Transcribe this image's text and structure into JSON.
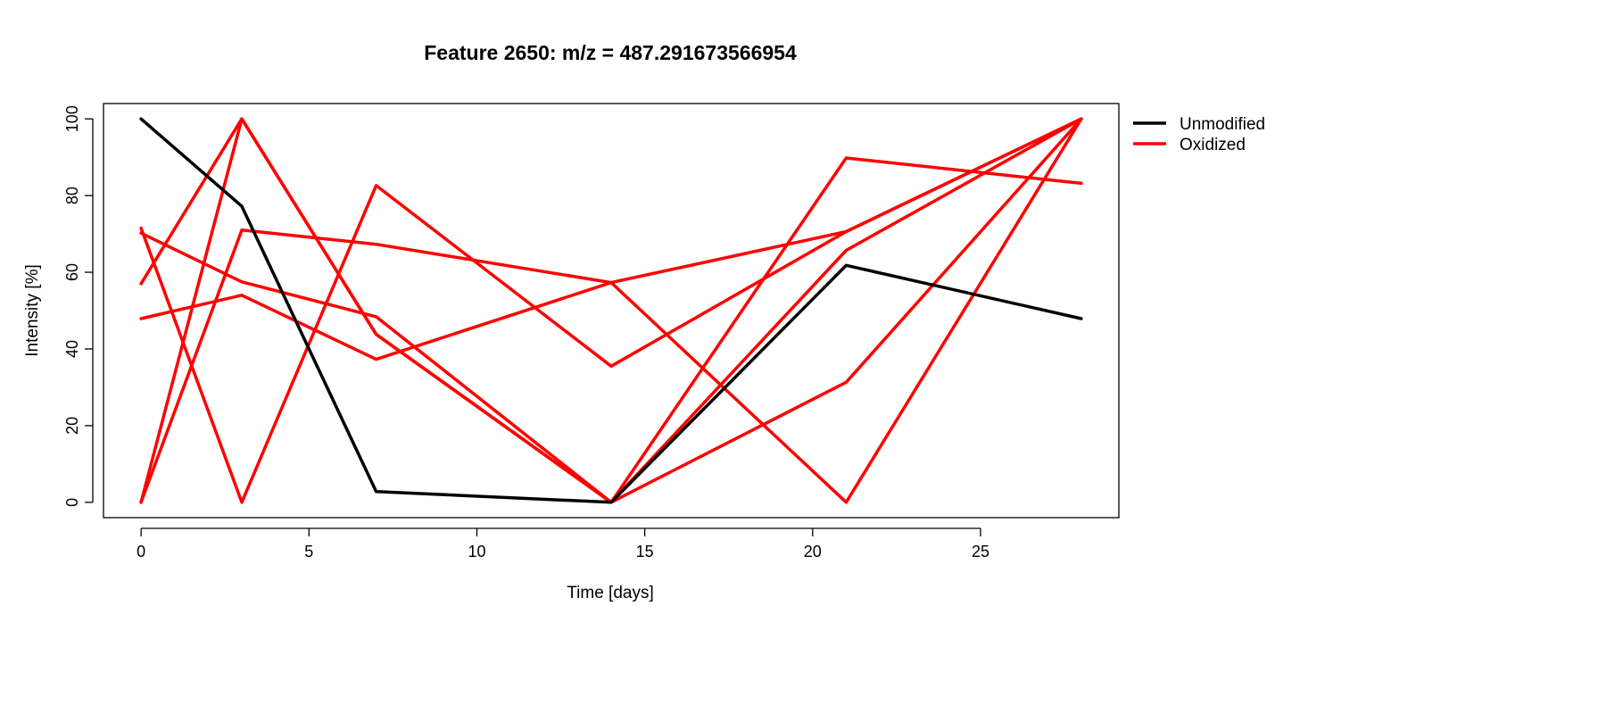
{
  "chart_data": {
    "type": "line",
    "title": "Feature 2650: m/z = 487.291673566954",
    "xlabel": "Time [days]",
    "ylabel": "Intensity [%]",
    "x": [
      0,
      3,
      7,
      14,
      21,
      28
    ],
    "xlim": [
      -1.12,
      29.12
    ],
    "ylim": [
      -4,
      104
    ],
    "xticks": [
      0,
      5,
      10,
      15,
      20,
      25
    ],
    "yticks": [
      0,
      20,
      40,
      60,
      80,
      100
    ],
    "grid": false,
    "legend_position": "top-right, outside plot",
    "legend": [
      {
        "label": "Unmodified",
        "color": "#000000"
      },
      {
        "label": "Oxidized",
        "color": "#ff0000"
      }
    ],
    "series": [
      {
        "group": "Unmodified",
        "color": "#000000",
        "values": [
          100,
          77.2,
          2.8,
          0,
          61.8,
          47.9
        ]
      },
      {
        "group": "Oxidized",
        "color": "#ff0000",
        "values": [
          0,
          100,
          43.8,
          0,
          65.7,
          100
        ]
      },
      {
        "group": "Oxidized",
        "color": "#ff0000",
        "values": [
          57.0,
          100,
          43.8,
          0,
          89.8,
          83.2
        ]
      },
      {
        "group": "Oxidized",
        "color": "#ff0000",
        "values": [
          71.5,
          0,
          82.6,
          35.5,
          70.6,
          100
        ]
      },
      {
        "group": "Oxidized",
        "color": "#ff0000",
        "values": [
          70.2,
          57.5,
          48.4,
          0,
          31.3,
          100
        ]
      },
      {
        "group": "Oxidized",
        "color": "#ff0000",
        "values": [
          47.9,
          54.0,
          37.3,
          57.3,
          70.6,
          100
        ]
      },
      {
        "group": "Oxidized",
        "color": "#ff0000",
        "values": [
          0,
          71.0,
          67.3,
          57.3,
          0,
          100
        ]
      }
    ]
  }
}
